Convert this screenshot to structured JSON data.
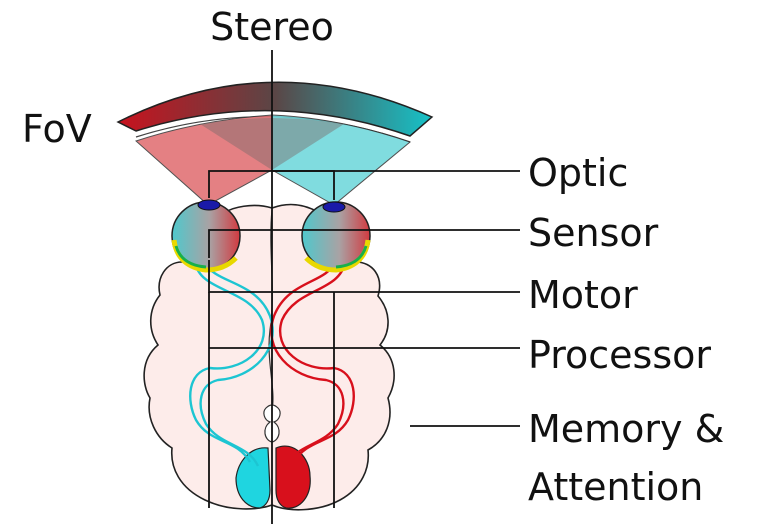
{
  "labels": {
    "stereo": "Stereo",
    "fov": "FoV",
    "optic": "Optic",
    "sensor": "Sensor",
    "motor": "Motor",
    "processor": "Processor",
    "memory_line1": "Memory &",
    "memory_line2": "Attention"
  },
  "colors": {
    "left_red": "#c8121e",
    "right_cyan": "#1dc5d2",
    "brain_fill": "#fdecea",
    "lens_blue": "#1a1aa8",
    "motor_yellow": "#e8d800",
    "motor_green": "#18b04a"
  }
}
